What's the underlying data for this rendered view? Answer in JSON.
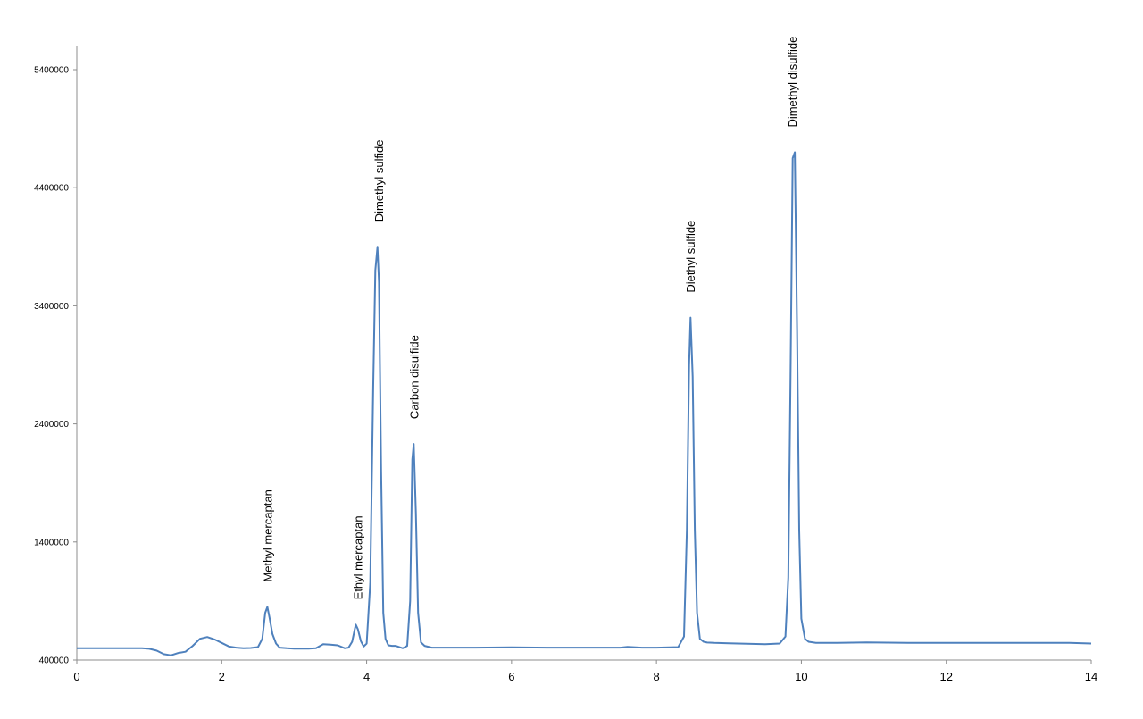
{
  "chart_data": {
    "type": "line",
    "title": "",
    "xlabel": "",
    "ylabel": "",
    "xlim": [
      0,
      14
    ],
    "ylim": [
      400000,
      5600000
    ],
    "x_ticks": [
      0,
      2,
      4,
      6,
      8,
      10,
      12,
      14
    ],
    "x_tick_labels": [
      "0",
      "2",
      "4",
      "6",
      "8",
      "10",
      "12",
      "14"
    ],
    "y_ticks": [
      400000,
      1400000,
      2400000,
      3400000,
      4400000,
      5400000
    ],
    "y_tick_labels": [
      "400000",
      "1400000",
      "2400000",
      "3400000",
      "4400000",
      "5400000"
    ],
    "grid": false,
    "legend": "none",
    "line_color": "#4f81bd",
    "series": [
      {
        "name": "",
        "x": [
          0.0,
          0.5,
          0.9,
          1.0,
          1.1,
          1.2,
          1.3,
          1.4,
          1.5,
          1.6,
          1.7,
          1.8,
          1.9,
          2.0,
          2.1,
          2.2,
          2.3,
          2.4,
          2.5,
          2.56,
          2.6,
          2.63,
          2.66,
          2.7,
          2.75,
          2.8,
          2.9,
          3.0,
          3.2,
          3.3,
          3.4,
          3.5,
          3.6,
          3.7,
          3.75,
          3.8,
          3.85,
          3.88,
          3.92,
          3.96,
          4.0,
          4.05,
          4.09,
          4.12,
          4.15,
          4.17,
          4.2,
          4.23,
          4.26,
          4.3,
          4.35,
          4.4,
          4.5,
          4.56,
          4.6,
          4.63,
          4.65,
          4.68,
          4.71,
          4.75,
          4.8,
          4.9,
          5.0,
          5.5,
          6.0,
          6.5,
          7.0,
          7.5,
          7.6,
          7.8,
          8.0,
          8.3,
          8.38,
          8.42,
          8.45,
          8.47,
          8.5,
          8.53,
          8.56,
          8.6,
          8.65,
          8.7,
          8.8,
          9.0,
          9.5,
          9.7,
          9.78,
          9.82,
          9.85,
          9.88,
          9.91,
          9.94,
          9.97,
          10.0,
          10.05,
          10.1,
          10.2,
          10.5,
          10.9,
          11.5,
          12.2,
          13.0,
          13.7,
          14.0
        ],
        "values": [
          500000,
          500000,
          500000,
          495000,
          480000,
          450000,
          440000,
          460000,
          470000,
          520000,
          580000,
          595000,
          575000,
          545000,
          515000,
          505000,
          500000,
          502000,
          510000,
          580000,
          800000,
          850000,
          760000,
          620000,
          540000,
          505000,
          500000,
          497000,
          497000,
          500000,
          535000,
          530000,
          525000,
          500000,
          505000,
          555000,
          700000,
          660000,
          560000,
          515000,
          540000,
          1050000,
          2700000,
          3700000,
          3900000,
          3600000,
          2000000,
          800000,
          580000,
          525000,
          520000,
          520000,
          500000,
          520000,
          900000,
          2100000,
          2230000,
          1650000,
          800000,
          550000,
          520000,
          505000,
          505000,
          505000,
          508000,
          505000,
          505000,
          505000,
          512000,
          505000,
          505000,
          510000,
          600000,
          1500000,
          2900000,
          3300000,
          2800000,
          1500000,
          800000,
          580000,
          555000,
          548000,
          545000,
          542000,
          535000,
          540000,
          600000,
          1100000,
          2800000,
          4650000,
          4700000,
          3200000,
          1500000,
          750000,
          580000,
          555000,
          545000,
          545000,
          550000,
          545000,
          545000,
          545000,
          545000,
          540000
        ]
      }
    ],
    "annotations": [
      {
        "text": "Methyl mercaptan",
        "x": 2.64,
        "y": 850000
      },
      {
        "text": "Ethyl mercaptan",
        "x": 3.88,
        "y": 700000
      },
      {
        "text": "Dimethyl sulfide",
        "x": 4.17,
        "y": 3900000
      },
      {
        "text": "Carbon disulfide",
        "x": 4.66,
        "y": 2230000
      },
      {
        "text": "Diethyl sulfide",
        "x": 8.47,
        "y": 3300000
      },
      {
        "text": "Dimethyl disulfide",
        "x": 9.88,
        "y": 4700000
      }
    ]
  }
}
